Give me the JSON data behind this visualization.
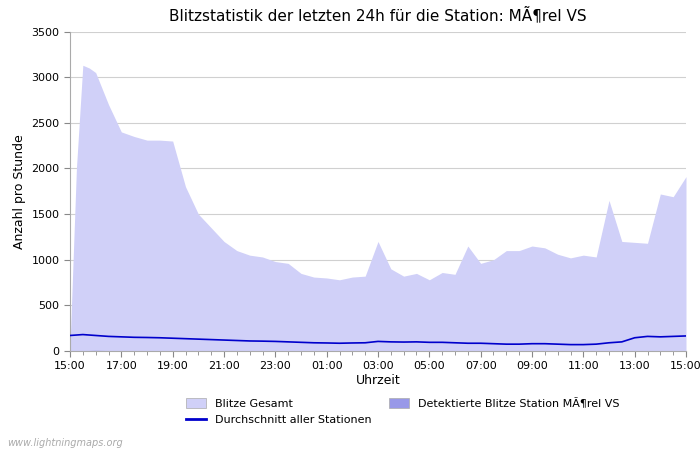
{
  "title": "Blitzstatistik der letzten 24h für die Station: MÃ¶rel VS",
  "xlabel": "Uhrzeit",
  "ylabel": "Anzahl pro Stunde",
  "ylim": [
    0,
    3500
  ],
  "yticks": [
    0,
    500,
    1000,
    1500,
    2000,
    2500,
    3000,
    3500
  ],
  "xtick_labels": [
    "15:00",
    "17:00",
    "19:00",
    "21:00",
    "23:00",
    "01:00",
    "03:00",
    "05:00",
    "07:00",
    "09:00",
    "11:00",
    "13:00",
    "15:00"
  ],
  "background_color": "#ffffff",
  "plot_bg_color": "#ffffff",
  "grid_color": "#d0d0d0",
  "watermark": "www.lightningmaps.org",
  "legend_labels": [
    "Blitze Gesamt",
    "Durchschnitt aller Stationen",
    "Detektierte Blitze Station MÃ¶rel VS"
  ],
  "gesamt_color": "#d0d0f8",
  "station_color": "#9898e8",
  "avg_color": "#0000cc",
  "x_values": [
    0,
    0.25,
    0.5,
    0.75,
    1,
    1.5,
    2,
    2.5,
    3,
    3.5,
    4,
    4.5,
    5,
    5.5,
    6,
    6.5,
    7,
    7.5,
    8,
    8.5,
    9,
    9.5,
    10,
    10.5,
    11,
    11.5,
    12,
    12.5,
    13,
    13.5,
    14,
    14.5,
    15,
    15.5,
    16,
    16.5,
    17,
    17.5,
    18,
    18.5,
    19,
    19.5,
    20,
    20.5,
    21,
    21.5,
    22,
    22.5,
    23,
    23.5,
    24
  ],
  "gesamt_values": [
    50,
    2000,
    3130,
    3100,
    3050,
    2700,
    2400,
    2350,
    2310,
    2310,
    2300,
    1800,
    1500,
    1350,
    1200,
    1100,
    1050,
    1030,
    980,
    960,
    850,
    810,
    800,
    780,
    810,
    820,
    1200,
    900,
    820,
    850,
    780,
    860,
    840,
    1150,
    960,
    1000,
    1100,
    1100,
    1150,
    1130,
    1060,
    1020,
    1050,
    1030,
    1650,
    1200,
    1190,
    1180,
    1720,
    1690,
    1910
  ],
  "avg_values": [
    170,
    175,
    180,
    175,
    170,
    160,
    155,
    150,
    148,
    145,
    140,
    135,
    130,
    125,
    120,
    115,
    110,
    108,
    105,
    100,
    95,
    90,
    88,
    85,
    88,
    90,
    105,
    100,
    98,
    100,
    95,
    95,
    90,
    85,
    85,
    80,
    75,
    75,
    80,
    80,
    75,
    70,
    70,
    75,
    90,
    100,
    145,
    160,
    155,
    160,
    165
  ],
  "station_values": [
    0,
    3,
    5,
    6,
    8,
    5,
    5,
    5,
    5,
    4,
    4,
    3,
    3,
    3,
    3,
    3,
    3,
    3,
    3,
    3,
    3,
    3,
    3,
    3,
    3,
    3,
    3,
    3,
    3,
    3,
    3,
    3,
    3,
    3,
    3,
    3,
    3,
    3,
    3,
    3,
    3,
    3,
    3,
    3,
    3,
    3,
    3,
    3,
    3,
    3,
    3
  ],
  "title_fontsize": 11,
  "label_fontsize": 9,
  "tick_fontsize": 8
}
